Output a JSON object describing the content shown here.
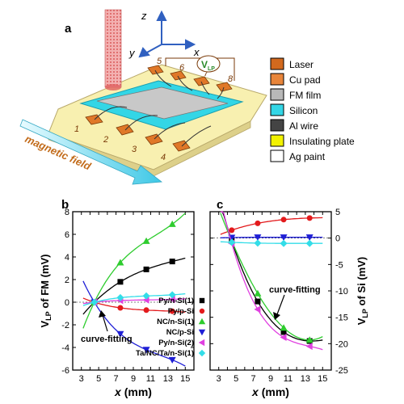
{
  "diagram": {
    "panel_label": "a",
    "axes": {
      "z": "z",
      "x": "x",
      "y": "y"
    },
    "pad_numbers": [
      "1",
      "2",
      "3",
      "4",
      "5",
      "6",
      "7",
      "8"
    ],
    "voltage_label": "V",
    "voltage_sub": "LP",
    "field_label": "magnetic field",
    "legend": [
      {
        "label": "Laser",
        "color": "#d2691e"
      },
      {
        "label": "Cu pad",
        "color": "#e8853a"
      },
      {
        "label": "FM film",
        "color": "#b8b8b8"
      },
      {
        "label": "Silicon",
        "color": "#33d6e6"
      },
      {
        "label": "Al wire",
        "color": "#444444"
      },
      {
        "label": "Insulating plate",
        "color": "#f2f200"
      },
      {
        "label": "Ag paint",
        "color": "#ffffff"
      }
    ]
  },
  "chart_data": [
    {
      "panel": "b",
      "type": "scatter",
      "ylabel_main": "V",
      "ylabel_sub": "LP",
      "ylabel_rest": " of FM (mV)",
      "xlabel": "x (mm)",
      "xlim": [
        2,
        16
      ],
      "ylim": [
        -6,
        8
      ],
      "xticks": [
        "3",
        "4",
        "5",
        "6",
        "7",
        "8",
        "9",
        "10",
        "11",
        "12",
        "13",
        "14",
        "15"
      ],
      "yticks": [
        "-6",
        "-4",
        "-2",
        "0",
        "2",
        "4",
        "6",
        "8"
      ],
      "annotation": "curve-fitting",
      "series": [
        {
          "name": "Py/n-Si(1)",
          "color": "#000000",
          "marker": "square",
          "x": [
            4.5,
            7.5,
            10.5,
            13.5
          ],
          "y": [
            0,
            1.8,
            2.9,
            3.6
          ]
        },
        {
          "name": "Py/p-Si",
          "color": "#e31a1c",
          "marker": "circle",
          "x": [
            4.5,
            7.5,
            10.5,
            13.5
          ],
          "y": [
            0,
            -0.5,
            -0.7,
            -0.8
          ]
        },
        {
          "name": "NC/n-Si(1)",
          "color": "#2ecc2e",
          "marker": "triangle-up",
          "x": [
            4.5,
            7.5,
            10.5,
            13.5
          ],
          "y": [
            0,
            3.5,
            5.4,
            6.9
          ]
        },
        {
          "name": "NC/p-Si",
          "color": "#1f1fd6",
          "marker": "triangle-down",
          "x": [
            4.5,
            7.5,
            10.5,
            13.5
          ],
          "y": [
            0,
            -2.8,
            -4.2,
            -5.1
          ]
        },
        {
          "name": "Py/n-Si(2)",
          "color": "#e040e0",
          "marker": "triangle-left",
          "x": [
            4.5,
            7.5,
            10.5,
            13.5
          ],
          "y": [
            0,
            0.15,
            0.2,
            0.25
          ]
        },
        {
          "name": "Ta/NC/Ta/n-Si(1)",
          "color": "#33dde8",
          "marker": "diamond",
          "x": [
            4.5,
            7.5,
            10.5,
            13.5
          ],
          "y": [
            0,
            0.4,
            0.55,
            0.65
          ]
        }
      ]
    },
    {
      "panel": "c",
      "type": "scatter",
      "ylabel_main": "V",
      "ylabel_sub": "LP",
      "ylabel_rest": " of Si (mV)",
      "xlabel": "x (mm)",
      "xlim": [
        2,
        16
      ],
      "ylim": [
        -25,
        5
      ],
      "xticks": [
        "3",
        "4",
        "5",
        "6",
        "7",
        "8",
        "9",
        "10",
        "11",
        "12",
        "13",
        "14",
        "15"
      ],
      "yticks": [
        "5",
        "0",
        "-5",
        "-10",
        "-15",
        "-20",
        "-25"
      ],
      "annotation": "curve-fitting",
      "series": [
        {
          "name": "Py/n-Si(1)",
          "color": "#000000",
          "marker": "square",
          "x": [
            4.5,
            7.5,
            10.5,
            13.5
          ],
          "y": [
            -0.5,
            -12,
            -17.8,
            -19.5
          ]
        },
        {
          "name": "Py/p-Si",
          "color": "#e31a1c",
          "marker": "circle",
          "x": [
            4.5,
            7.5,
            10.5,
            13.5
          ],
          "y": [
            1.5,
            2.8,
            3.5,
            3.8
          ]
        },
        {
          "name": "NC/n-Si(1)",
          "color": "#2ecc2e",
          "marker": "triangle-up",
          "x": [
            4.5,
            7.5,
            10.5,
            13.5
          ],
          "y": [
            -0.5,
            -10.5,
            -17,
            -19.3
          ]
        },
        {
          "name": "NC/p-Si",
          "color": "#1f1fd6",
          "marker": "triangle-down",
          "x": [
            4.5,
            7.5,
            10.5,
            13.5
          ],
          "y": [
            0.1,
            0.15,
            0.15,
            0.15
          ]
        },
        {
          "name": "Py/n-Si(2)",
          "color": "#e040e0",
          "marker": "triangle-left",
          "x": [
            4.5,
            7.5,
            10.5,
            13.5
          ],
          "y": [
            -1,
            -13.5,
            -18.8,
            -20.5
          ]
        },
        {
          "name": "Ta/NC/Ta/n-Si(1)",
          "color": "#33dde8",
          "marker": "diamond",
          "x": [
            4.5,
            7.5,
            10.5,
            13.5
          ],
          "y": [
            -0.8,
            -0.95,
            -1.0,
            -1.0
          ]
        }
      ]
    }
  ]
}
